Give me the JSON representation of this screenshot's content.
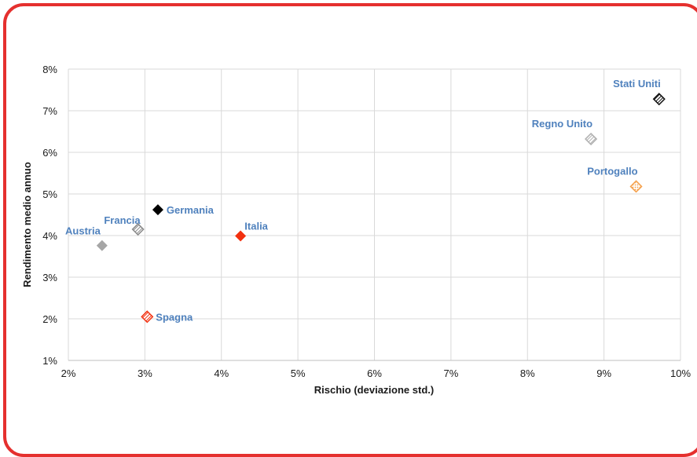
{
  "chart_data": {
    "type": "scatter",
    "title": "",
    "xlabel": "Rischio (deviazione std.)",
    "ylabel": "Rendimento medio annuo",
    "xlim": [
      2,
      10
    ],
    "ylim": [
      1,
      8
    ],
    "grid": true,
    "x_ticks": [
      "2%",
      "3%",
      "4%",
      "5%",
      "6%",
      "7%",
      "8%",
      "9%",
      "10%"
    ],
    "y_ticks": [
      "1%",
      "2%",
      "3%",
      "4%",
      "5%",
      "6%",
      "7%",
      "8%"
    ],
    "label_color": "#4f81bd",
    "points": [
      {
        "label": "Stati Uniti",
        "x": 9.72,
        "y": 7.28,
        "color": "#111111",
        "marker": "hatched",
        "label_pos": "above-left"
      },
      {
        "label": "Regno Unito",
        "x": 8.83,
        "y": 6.32,
        "color": "#b0b0b0",
        "marker": "hatched",
        "label_pos": "above-left"
      },
      {
        "label": "Portogallo",
        "x": 9.42,
        "y": 5.18,
        "color": "#f5a04a",
        "marker": "dotted",
        "label_pos": "above-left"
      },
      {
        "label": "Germania",
        "x": 3.17,
        "y": 4.62,
        "color": "#000000",
        "marker": "solid",
        "label_pos": "right"
      },
      {
        "label": "Francia",
        "x": 2.91,
        "y": 4.15,
        "color": "#8a8a8a",
        "marker": "hatched",
        "label_pos": "above-left"
      },
      {
        "label": "Austria",
        "x": 2.44,
        "y": 3.76,
        "color": "#a6a6a6",
        "marker": "solid",
        "label_pos": "above-left"
      },
      {
        "label": "Italia",
        "x": 4.25,
        "y": 3.99,
        "color": "#f2300f",
        "marker": "solid",
        "label_pos": "above"
      },
      {
        "label": "Spagna",
        "x": 3.03,
        "y": 2.05,
        "color": "#f2300f",
        "marker": "hatched",
        "label_pos": "right"
      }
    ]
  }
}
